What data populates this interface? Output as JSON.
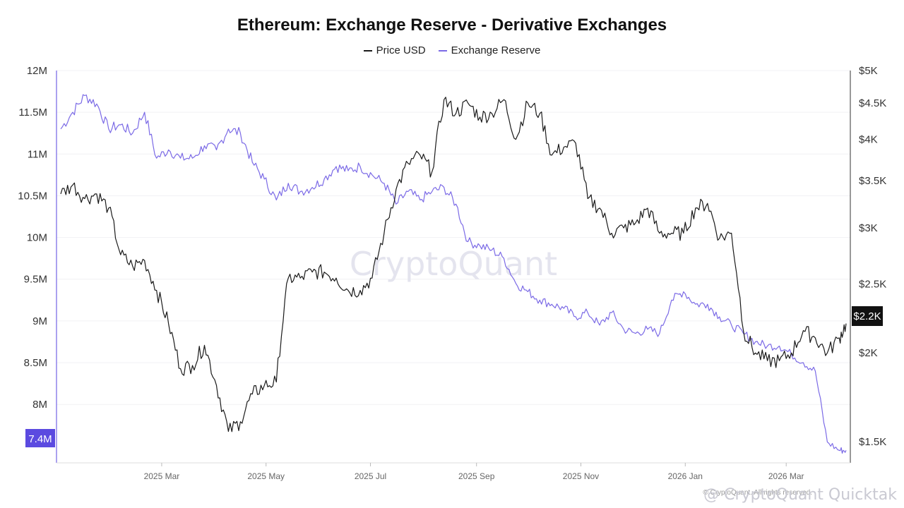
{
  "chart_data": {
    "type": "line",
    "title": "Ethereum: Exchange Reserve - Derivative Exchanges",
    "watermark": "CryptoQuant",
    "legend_position": "top-center",
    "grid": true,
    "x_tick_labels": [
      "2025 Mar",
      "2025 May",
      "2025 Jul",
      "2025 Sep",
      "2025 Nov",
      "2026 Jan",
      "2026 Mar"
    ],
    "x_range": [
      "2025-01-01",
      "2026-04-05"
    ],
    "y_left": {
      "ticks": [
        "12M",
        "11.5M",
        "11M",
        "10.5M",
        "10M",
        "9.5M",
        "9M",
        "8.5M",
        "8M",
        "7.4M"
      ],
      "ylim": [
        7.3,
        12.0
      ],
      "unit": "M"
    },
    "y_right": {
      "ticks": [
        "$5K",
        "$4.5K",
        "$4K",
        "$3.5K",
        "$3K",
        "$2.5K",
        "$2K",
        "$1.5K"
      ],
      "scale": "log",
      "ylim": [
        1400,
        5000
      ],
      "unit": "USD"
    },
    "series": [
      {
        "name": "Price USD",
        "color": "#1a1a1a",
        "axis": "right",
        "x": [
          "2025-01-01",
          "2025-01-08",
          "2025-01-15",
          "2025-01-22",
          "2025-01-29",
          "2025-02-05",
          "2025-02-12",
          "2025-02-19",
          "2025-02-26",
          "2025-03-05",
          "2025-03-12",
          "2025-03-19",
          "2025-03-26",
          "2025-04-02",
          "2025-04-09",
          "2025-04-16",
          "2025-04-23",
          "2025-04-30",
          "2025-05-07",
          "2025-05-14",
          "2025-05-21",
          "2025-05-28",
          "2025-06-04",
          "2025-06-11",
          "2025-06-18",
          "2025-06-25",
          "2025-07-02",
          "2025-07-09",
          "2025-07-16",
          "2025-07-23",
          "2025-07-30",
          "2025-08-06",
          "2025-08-13",
          "2025-08-20",
          "2025-08-27",
          "2025-09-03",
          "2025-09-10",
          "2025-09-17",
          "2025-09-24",
          "2025-10-01",
          "2025-10-08",
          "2025-10-15",
          "2025-10-22",
          "2025-10-29",
          "2025-11-05",
          "2025-11-12",
          "2025-11-19",
          "2025-11-26",
          "2025-12-03",
          "2025-12-10",
          "2025-12-17",
          "2025-12-24",
          "2025-12-31",
          "2026-01-07",
          "2026-01-14",
          "2026-01-21",
          "2026-01-28",
          "2026-02-04",
          "2026-02-11",
          "2026-02-18",
          "2026-02-25",
          "2026-03-04",
          "2026-03-11",
          "2026-03-18",
          "2026-03-25",
          "2026-04-01",
          "2026-04-05"
        ],
        "values": [
          3350,
          3450,
          3300,
          3350,
          3200,
          2750,
          2650,
          2700,
          2450,
          2200,
          1900,
          1920,
          2050,
          1800,
          1550,
          1600,
          1750,
          1800,
          1820,
          2550,
          2550,
          2600,
          2600,
          2550,
          2450,
          2450,
          2550,
          2950,
          3400,
          3700,
          3800,
          3600,
          4550,
          4350,
          4500,
          4300,
          4350,
          4550,
          4000,
          4500,
          4350,
          3800,
          3900,
          3950,
          3300,
          3200,
          2950,
          3000,
          3050,
          3200,
          2950,
          2950,
          2950,
          3200,
          3250,
          2900,
          2950,
          2150,
          2000,
          1950,
          1950,
          2000,
          2150,
          2100,
          2000,
          2100,
          2200
        ]
      },
      {
        "name": "Exchange Reserve",
        "color": "#7b6ae6",
        "axis": "left",
        "x": [
          "2025-01-01",
          "2025-01-08",
          "2025-01-15",
          "2025-01-22",
          "2025-01-29",
          "2025-02-05",
          "2025-02-12",
          "2025-02-19",
          "2025-02-26",
          "2025-03-05",
          "2025-03-12",
          "2025-03-19",
          "2025-03-26",
          "2025-04-02",
          "2025-04-09",
          "2025-04-16",
          "2025-04-23",
          "2025-04-30",
          "2025-05-07",
          "2025-05-14",
          "2025-05-21",
          "2025-05-28",
          "2025-06-04",
          "2025-06-11",
          "2025-06-18",
          "2025-06-25",
          "2025-07-02",
          "2025-07-09",
          "2025-07-16",
          "2025-07-23",
          "2025-07-30",
          "2025-08-06",
          "2025-08-13",
          "2025-08-20",
          "2025-08-27",
          "2025-09-03",
          "2025-09-10",
          "2025-09-17",
          "2025-09-24",
          "2025-10-01",
          "2025-10-08",
          "2025-10-15",
          "2025-10-22",
          "2025-10-29",
          "2025-11-05",
          "2025-11-12",
          "2025-11-19",
          "2025-11-26",
          "2025-12-03",
          "2025-12-10",
          "2025-12-17",
          "2025-12-24",
          "2025-12-31",
          "2026-01-07",
          "2026-01-14",
          "2026-01-21",
          "2026-01-28",
          "2026-02-04",
          "2026-02-11",
          "2026-02-18",
          "2026-02-25",
          "2026-03-04",
          "2026-03-11",
          "2026-03-18",
          "2026-03-25",
          "2026-04-01",
          "2026-04-05"
        ],
        "values": [
          11.3,
          11.5,
          11.7,
          11.6,
          11.3,
          11.35,
          11.25,
          11.5,
          10.95,
          11.05,
          10.95,
          10.95,
          11.1,
          11.05,
          11.3,
          11.25,
          10.9,
          10.7,
          10.45,
          10.65,
          10.55,
          10.6,
          10.7,
          10.85,
          10.8,
          10.85,
          10.75,
          10.65,
          10.4,
          10.55,
          10.45,
          10.55,
          10.6,
          10.4,
          9.95,
          9.9,
          9.85,
          9.75,
          9.45,
          9.35,
          9.25,
          9.2,
          9.15,
          9.05,
          9.1,
          8.95,
          9.1,
          8.9,
          8.85,
          8.9,
          8.85,
          9.25,
          9.35,
          9.2,
          9.2,
          9.05,
          8.95,
          8.85,
          8.75,
          8.7,
          8.7,
          8.6,
          8.5,
          8.4,
          7.55,
          7.45,
          7.45
        ]
      }
    ],
    "current_values": {
      "reserve_label": "7.4M",
      "price_label": "$2.2K"
    }
  },
  "footer": {
    "brand": "@ CryptoQuant Quicktak",
    "small": "© CryptoQuant. All rights reserved."
  }
}
